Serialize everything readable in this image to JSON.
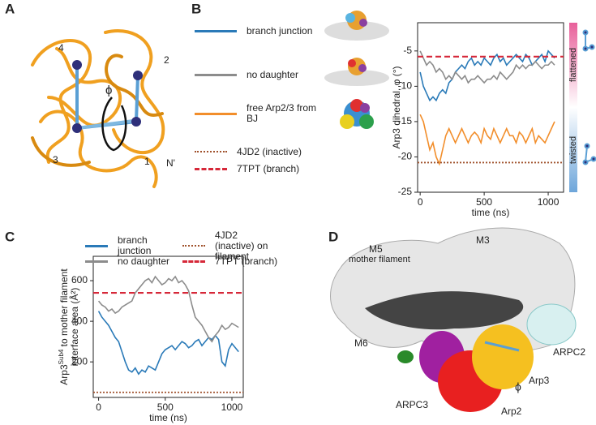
{
  "panel_labels": [
    "A",
    "B",
    "C",
    "D"
  ],
  "panel_a": {
    "labels": [
      "4",
      "2",
      "3",
      "1",
      "N'",
      "ϕ"
    ]
  },
  "panel_d": {
    "labels": [
      "M5",
      "M3",
      "mother filament",
      "M6",
      "ARPC2",
      "Arp3",
      "ϕ",
      "ARPC3",
      "Arp2"
    ]
  },
  "chart_data": [
    {
      "type": "line",
      "ylabel": "Arp3 dihedral, φ (°)",
      "xlabel": "time (ns)",
      "x": [
        0,
        25,
        50,
        75,
        100,
        125,
        150,
        175,
        200,
        225,
        250,
        275,
        300,
        325,
        350,
        375,
        400,
        425,
        450,
        475,
        500,
        525,
        550,
        575,
        600,
        625,
        650,
        675,
        700,
        725,
        750,
        775,
        800,
        825,
        850,
        875,
        900,
        925,
        950,
        975,
        1000,
        1025,
        1050
      ],
      "series": [
        {
          "name": "branch junction",
          "color": "#2a7ab8",
          "values": [
            -8,
            -10,
            -11,
            -12,
            -11.5,
            -12,
            -11,
            -10.5,
            -11,
            -9.5,
            -9,
            -8,
            -7.5,
            -7,
            -7.5,
            -6.5,
            -6,
            -7,
            -6.5,
            -7,
            -6,
            -6.5,
            -7,
            -6,
            -5.5,
            -6.5,
            -6,
            -7,
            -6.5,
            -6,
            -5.5,
            -6,
            -6.5,
            -5.5,
            -6,
            -7,
            -6.5,
            -6,
            -5.5,
            -6.5,
            -5,
            -5.5,
            -6
          ]
        },
        {
          "name": "no daughter",
          "color": "#8c8c8c",
          "values": [
            -5,
            -6,
            -7,
            -6.5,
            -7,
            -8,
            -7.5,
            -8,
            -9,
            -8.5,
            -9,
            -8,
            -8.5,
            -9,
            -8.5,
            -9.5,
            -9,
            -9,
            -8.5,
            -9,
            -9.5,
            -9,
            -9,
            -8.5,
            -9,
            -8,
            -8.5,
            -9,
            -8.5,
            -8,
            -7,
            -7.5,
            -7,
            -7.5,
            -7,
            -7,
            -6.5,
            -7,
            -7.5,
            -7,
            -7,
            -6.5,
            -7
          ]
        },
        {
          "name": "free Arp2/3 from BJ",
          "color": "#f28e2b",
          "values": [
            -14,
            -15,
            -17,
            -19,
            -18,
            -20,
            -21,
            -19,
            -17,
            -16,
            -17,
            -18,
            -17,
            -16,
            -17,
            -18,
            -17,
            -16.5,
            -17,
            -18,
            -16,
            -17,
            -17.5,
            -16,
            -17,
            -18,
            -17,
            -16,
            -17,
            -17,
            -18,
            -16.5,
            -17,
            -18,
            -17,
            -16,
            -18,
            -17,
            -17.5,
            -18,
            -17,
            -16,
            -15
          ]
        }
      ],
      "reference_lines": [
        {
          "name": "4JD2 (inactive)",
          "value": -20.8,
          "color": "#a0522d",
          "style": "dotted"
        },
        {
          "name": "7TPT (branch)",
          "value": -5.8,
          "color": "#d62839",
          "style": "dashed"
        }
      ],
      "xlim": [
        -20,
        1120
      ],
      "ylim": [
        -25,
        -1
      ],
      "xticks": [
        0,
        500,
        1000
      ],
      "yticks": [
        -25,
        -20,
        -15,
        -10,
        -5
      ],
      "colorbar_labels": [
        "flattened",
        "twisted"
      ]
    },
    {
      "type": "line",
      "ylabel": {
        "base": "Arp3",
        "sup": "Sub4",
        "rest": " to mother filament",
        "line2": "interface area (Å²)"
      },
      "xlabel": "time (ns)",
      "x": [
        0,
        25,
        50,
        75,
        100,
        125,
        150,
        175,
        200,
        225,
        250,
        275,
        300,
        325,
        350,
        375,
        400,
        425,
        450,
        475,
        500,
        525,
        550,
        575,
        600,
        625,
        650,
        675,
        700,
        725,
        750,
        775,
        800,
        825,
        850,
        875,
        900,
        925,
        950,
        975,
        1000,
        1025,
        1050
      ],
      "series": [
        {
          "name": "branch junction",
          "color": "#2a7ab8",
          "values": [
            450,
            420,
            400,
            380,
            350,
            320,
            300,
            250,
            200,
            160,
            150,
            170,
            140,
            160,
            150,
            180,
            170,
            160,
            200,
            240,
            260,
            270,
            280,
            260,
            280,
            300,
            290,
            270,
            280,
            300,
            310,
            280,
            300,
            320,
            310,
            330,
            310,
            200,
            180,
            260,
            290,
            270,
            250
          ]
        },
        {
          "name": "no daughter",
          "color": "#8c8c8c",
          "values": [
            500,
            480,
            470,
            450,
            460,
            440,
            450,
            470,
            480,
            490,
            500,
            540,
            560,
            580,
            600,
            610,
            590,
            620,
            600,
            580,
            590,
            610,
            600,
            620,
            590,
            600,
            580,
            550,
            480,
            420,
            400,
            380,
            350,
            320,
            300,
            330,
            350,
            380,
            360,
            370,
            390,
            380,
            370
          ]
        }
      ],
      "reference_lines": [
        {
          "name": "4JD2 (inactive) on filament",
          "value": 50,
          "color": "#a0522d",
          "style": "dotted"
        },
        {
          "name": "7TPT (branch)",
          "value": 540,
          "color": "#d62839",
          "style": "dashed"
        }
      ],
      "xlim": [
        -40,
        1085
      ],
      "ylim": [
        25,
        720
      ],
      "xticks": [
        0,
        500,
        1000
      ],
      "yticks": [
        200,
        400,
        600
      ]
    }
  ]
}
